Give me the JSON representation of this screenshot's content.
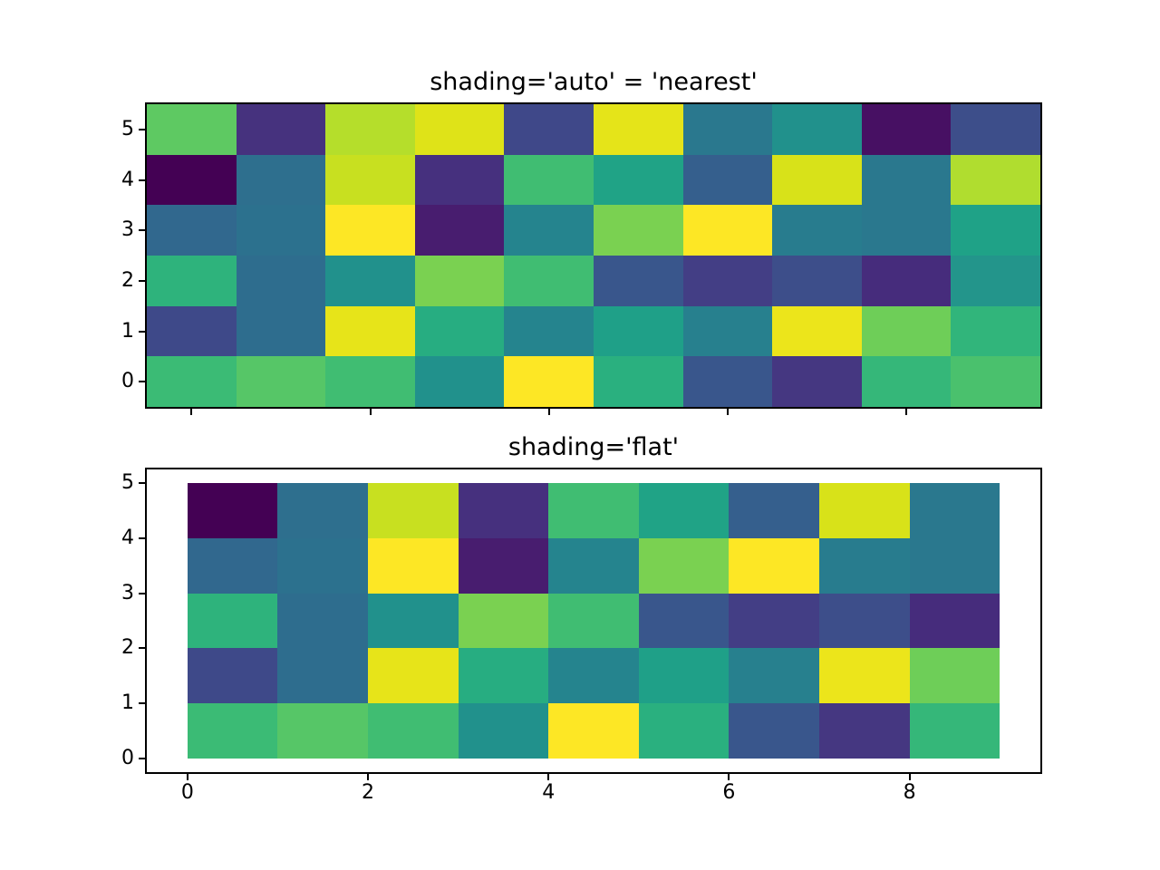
{
  "figure": {
    "background": "#ffffff",
    "text_color": "#000000"
  },
  "chart_data": [
    {
      "type": "heatmap",
      "title": "shading='auto' = 'nearest'",
      "shading": "nearest",
      "colormap": "viridis",
      "nrows": 6,
      "ncols": 10,
      "x_centers": [
        0,
        1,
        2,
        3,
        4,
        5,
        6,
        7,
        8,
        9
      ],
      "y_centers": [
        0,
        1,
        2,
        3,
        4,
        5
      ],
      "xlim": [
        -0.5,
        9.5
      ],
      "ylim": [
        -0.5,
        5.5
      ],
      "mesh_extent": {
        "x0": -0.5,
        "x1": 9.5,
        "y0": -0.5,
        "y1": 5.5
      },
      "xticks": [
        0,
        2,
        4,
        6,
        8
      ],
      "show_xtick_labels": false,
      "yticks": [
        0,
        1,
        2,
        3,
        4,
        5
      ],
      "grid": false,
      "values_rows_top_to_bottom": [
        [
          0.78,
          0.1,
          0.94,
          0.98,
          0.19,
          0.98,
          0.36,
          0.47,
          0.03,
          0.21
        ],
        [
          0.0,
          0.32,
          0.96,
          0.1,
          0.68,
          0.56,
          0.27,
          0.97,
          0.36,
          0.93
        ],
        [
          0.3,
          0.33,
          1.0,
          0.07,
          0.41,
          0.85,
          1.0,
          0.38,
          0.36,
          0.55
        ],
        [
          0.63,
          0.32,
          0.47,
          0.85,
          0.68,
          0.24,
          0.16,
          0.21,
          0.09,
          0.49
        ],
        [
          0.19,
          0.32,
          0.98,
          0.6,
          0.41,
          0.54,
          0.38,
          0.99,
          0.82,
          0.64
        ],
        [
          0.67,
          0.76,
          0.68,
          0.47,
          1.0,
          0.62,
          0.24,
          0.13,
          0.65,
          0.72
        ]
      ],
      "colors_rows_top_to_bottom": [
        [
          "#5ec962",
          "#46327e",
          "#b5de2b",
          "#dfe318",
          "#3f4889",
          "#e5e419",
          "#2a788e",
          "#21918c",
          "#471063",
          "#3d4e8a"
        ],
        [
          "#440154",
          "#2e6f8e",
          "#c8e020",
          "#46307e",
          "#40bd72",
          "#20a386",
          "#355f8d",
          "#d8e219",
          "#2a788e",
          "#b0dd2f"
        ],
        [
          "#31688e",
          "#2c718e",
          "#fde725",
          "#481d6f",
          "#25848e",
          "#7ad151",
          "#fde725",
          "#287c8e",
          "#2a788e",
          "#1fa287"
        ],
        [
          "#2eb37c",
          "#2e6d8e",
          "#21918c",
          "#7ad151",
          "#40bd72",
          "#39568c",
          "#433e85",
          "#3d4e8a",
          "#462c7c",
          "#23958b"
        ],
        [
          "#3e4989",
          "#2e6d8e",
          "#e7e419",
          "#27ad81",
          "#25848e",
          "#1fa088",
          "#27808e",
          "#ece51b",
          "#6ece58",
          "#31b57b"
        ],
        [
          "#3bbb75",
          "#56c667",
          "#40bd72",
          "#21918c",
          "#fde725",
          "#2ab07f",
          "#39568c",
          "#453781",
          "#35b779",
          "#4ac16d"
        ]
      ]
    },
    {
      "type": "heatmap",
      "title": "shading='flat'",
      "shading": "flat",
      "colormap": "viridis",
      "nrows": 5,
      "ncols": 9,
      "x_edges": [
        0,
        1,
        2,
        3,
        4,
        5,
        6,
        7,
        8,
        9
      ],
      "y_edges": [
        0,
        1,
        2,
        3,
        4,
        5
      ],
      "xlim": [
        -0.45,
        9.45
      ],
      "ylim": [
        -0.25,
        5.25
      ],
      "mesh_extent": {
        "x0": 0,
        "x1": 9,
        "y0": 0,
        "y1": 5
      },
      "xticks": [
        0,
        2,
        4,
        6,
        8
      ],
      "show_xtick_labels": true,
      "yticks": [
        0,
        1,
        2,
        3,
        4,
        5
      ],
      "grid": false,
      "values_rows_top_to_bottom": [
        [
          0.0,
          0.32,
          0.96,
          0.1,
          0.68,
          0.56,
          0.27,
          0.97,
          0.36
        ],
        [
          0.3,
          0.33,
          1.0,
          0.07,
          0.41,
          0.85,
          1.0,
          0.38,
          0.36
        ],
        [
          0.63,
          0.32,
          0.47,
          0.85,
          0.68,
          0.24,
          0.16,
          0.21,
          0.09
        ],
        [
          0.19,
          0.32,
          0.98,
          0.6,
          0.41,
          0.54,
          0.38,
          0.99,
          0.82
        ],
        [
          0.67,
          0.76,
          0.68,
          0.47,
          1.0,
          0.62,
          0.24,
          0.13,
          0.65
        ]
      ],
      "colors_rows_top_to_bottom": [
        [
          "#440154",
          "#2e6f8e",
          "#c8e020",
          "#46307e",
          "#40bd72",
          "#20a386",
          "#355f8d",
          "#d8e219",
          "#2a788e"
        ],
        [
          "#31688e",
          "#2c718e",
          "#fde725",
          "#481d6f",
          "#25848e",
          "#7ad151",
          "#fde725",
          "#287c8e",
          "#2a788e"
        ],
        [
          "#2eb37c",
          "#2e6d8e",
          "#21918c",
          "#7ad151",
          "#40bd72",
          "#39568c",
          "#433e85",
          "#3d4e8a",
          "#462c7c"
        ],
        [
          "#3e4989",
          "#2e6d8e",
          "#e7e419",
          "#27ad81",
          "#25848e",
          "#1fa088",
          "#27808e",
          "#ece51b",
          "#6ece58"
        ],
        [
          "#3bbb75",
          "#56c667",
          "#40bd72",
          "#21918c",
          "#fde725",
          "#2ab07f",
          "#39568c",
          "#453781",
          "#35b779"
        ]
      ]
    }
  ]
}
